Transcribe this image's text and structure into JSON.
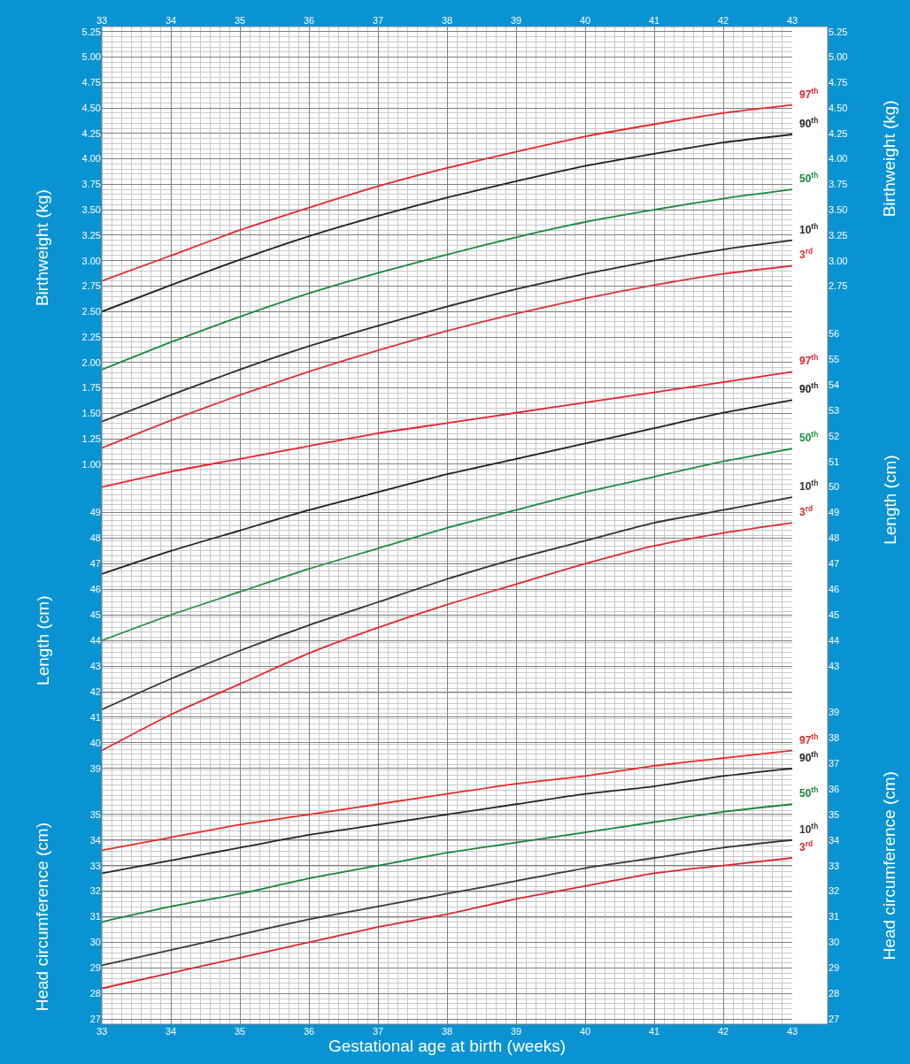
{
  "chart_data": [
    {
      "type": "line",
      "ylabel": "Birthweight (kg)",
      "y2label": "Birthweight (kg)",
      "xlim": [
        33,
        43
      ],
      "x2lim": [
        33,
        43
      ],
      "x2ticks": [
        33,
        34,
        35,
        36,
        37,
        38,
        39,
        40,
        41,
        42,
        43
      ],
      "tick_labels": "y",
      "grid": true,
      "x": [
        33,
        34,
        35,
        36,
        37,
        38,
        39,
        40,
        41,
        42,
        43
      ],
      "ylim": [
        -4.5,
        5.3
      ],
      "yticks": [
        {
          "value": 1,
          "label": "1.00"
        },
        1.25,
        {
          "value": 1.5,
          "label": "1.50"
        },
        1.75,
        {
          "value": 2,
          "label": "2.00"
        },
        2.25,
        {
          "value": 2.5,
          "label": "2.50"
        },
        2.75,
        {
          "value": 3,
          "label": "3.00"
        },
        3.25,
        {
          "value": 3.5,
          "label": "3.50"
        },
        3.75,
        {
          "value": 4,
          "label": "4.00"
        },
        4.25,
        {
          "value": 4.5,
          "label": "4.50"
        },
        4.75,
        {
          "value": 5,
          "label": "5.00"
        },
        5.25
      ],
      "y2lim": [
        -4.5,
        5.3
      ],
      "y2ticks": [
        2.75,
        {
          "value": 3,
          "label": "3.00"
        },
        3.25,
        {
          "value": 3.5,
          "label": "3.50"
        },
        3.75,
        {
          "value": 4,
          "label": "4.00"
        },
        4.25,
        {
          "value": 4.5,
          "label": "4.50"
        },
        4.75,
        {
          "value": 5,
          "label": "5.00"
        },
        5.25
      ],
      "series": [
        {
          "name": "97$^{th}$",
          "color": "#e8262b",
          "values": [
            2.8,
            3.05,
            3.3,
            3.52,
            3.73,
            3.91,
            4.07,
            4.22,
            4.34,
            4.45,
            4.53
          ]
        },
        {
          "name": "90$^{th}$",
          "color": "#231f20",
          "values": [
            2.5,
            2.76,
            3.01,
            3.24,
            3.44,
            3.62,
            3.78,
            3.93,
            4.05,
            4.16,
            4.24
          ]
        },
        {
          "name": "50$^{th}$",
          "color": "#1a8a3c",
          "values": [
            1.93,
            2.2,
            2.45,
            2.68,
            2.88,
            3.06,
            3.23,
            3.38,
            3.5,
            3.61,
            3.7
          ]
        },
        {
          "name": "10$^{th}$",
          "color": "#2e2a2b",
          "values": [
            1.42,
            1.68,
            1.93,
            2.16,
            2.36,
            2.55,
            2.72,
            2.87,
            3.0,
            3.11,
            3.2
          ]
        },
        {
          "name": "3$^{rd}$",
          "color": "#e0303a",
          "values": [
            1.16,
            1.43,
            1.68,
            1.91,
            2.12,
            2.31,
            2.48,
            2.63,
            2.76,
            2.87,
            2.95
          ]
        }
      ]
    },
    {
      "type": "line",
      "ylabel": "Length (cm)",
      "y2label": "Length (cm)",
      "xlim": [
        33,
        43
      ],
      "tick_labels": "y",
      "grid": true,
      "x": [
        33,
        34,
        35,
        36,
        37,
        38,
        39,
        40,
        41,
        42,
        43
      ],
      "ylim": [
        29,
        68
      ],
      "yticks": [
        39,
        40,
        41,
        42,
        43,
        44,
        45,
        46,
        47,
        48,
        49
      ],
      "y2lim": [
        29,
        68
      ],
      "y2ticks": [
        43,
        44,
        45,
        46,
        47,
        48,
        49,
        50,
        51,
        52,
        53,
        54,
        55,
        56
      ],
      "series": [
        {
          "name": "97$^{th}$",
          "color": "#ea2230",
          "values": [
            50.0,
            50.6,
            51.1,
            51.6,
            52.1,
            52.5,
            52.9,
            53.3,
            53.7,
            54.1,
            54.5
          ]
        },
        {
          "name": "90$^{th}$",
          "color": "#1e1e1e",
          "values": [
            46.6,
            47.5,
            48.3,
            49.1,
            49.8,
            50.5,
            51.1,
            51.7,
            52.3,
            52.9,
            53.4
          ]
        },
        {
          "name": "50$^{th}$",
          "color": "#1c8e40",
          "values": [
            44.0,
            45.0,
            45.9,
            46.8,
            47.6,
            48.4,
            49.1,
            49.8,
            50.4,
            51.0,
            51.5
          ]
        },
        {
          "name": "10$^{th}$",
          "color": "#333030",
          "values": [
            41.3,
            42.5,
            43.6,
            44.6,
            45.5,
            46.4,
            47.2,
            47.9,
            48.6,
            49.1,
            49.6
          ]
        },
        {
          "name": "3$^{rd}$",
          "color": "#e4282e",
          "values": [
            39.7,
            41.1,
            42.3,
            43.5,
            44.5,
            45.4,
            46.2,
            47.0,
            47.7,
            48.2,
            48.6
          ]
        }
      ]
    },
    {
      "type": "line",
      "ylabel": "Head circumference (cm)",
      "y2label": "Head circumference (cm)",
      "xlabel": "Gestational age at birth (weeks)",
      "xlim": [
        33,
        43
      ],
      "xticks": [
        33,
        34,
        35,
        36,
        37,
        38,
        39,
        40,
        41,
        42,
        43
      ],
      "grid": true,
      "x": [
        33,
        34,
        35,
        36,
        37,
        38,
        39,
        40,
        41,
        42,
        43
      ],
      "ylim": [
        26.8,
        65.8
      ],
      "yticks": [
        27,
        28,
        29,
        30,
        31,
        32,
        33,
        34,
        35
      ],
      "y2lim": [
        26.8,
        65.8
      ],
      "y2ticks": [
        27,
        28,
        29,
        30,
        31,
        32,
        33,
        34,
        35,
        36,
        37,
        38,
        39
      ],
      "series": [
        {
          "name": "97$^{th}$",
          "color": "#ec2a26",
          "values": [
            33.6,
            34.1,
            34.6,
            35.0,
            35.4,
            35.8,
            36.2,
            36.5,
            36.9,
            37.2,
            37.5
          ]
        },
        {
          "name": "90$^{th}$",
          "color": "#282324",
          "values": [
            32.7,
            33.2,
            33.7,
            34.2,
            34.6,
            35.0,
            35.4,
            35.8,
            36.1,
            36.5,
            36.8
          ]
        },
        {
          "name": "50$^{th}$",
          "color": "#188638",
          "values": [
            30.8,
            31.4,
            31.9,
            32.5,
            33.0,
            33.5,
            33.9,
            34.3,
            34.7,
            35.1,
            35.4
          ]
        },
        {
          "name": "10$^{th}$",
          "color": "#38393a",
          "values": [
            29.1,
            29.7,
            30.3,
            30.9,
            31.4,
            31.9,
            32.4,
            32.9,
            33.3,
            33.7,
            34.0
          ]
        },
        {
          "name": "3$^{rd}$",
          "color": "#dc2630",
          "values": [
            28.2,
            28.8,
            29.4,
            30.0,
            30.6,
            31.1,
            31.7,
            32.2,
            32.7,
            33.0,
            33.3
          ]
        }
      ]
    }
  ]
}
